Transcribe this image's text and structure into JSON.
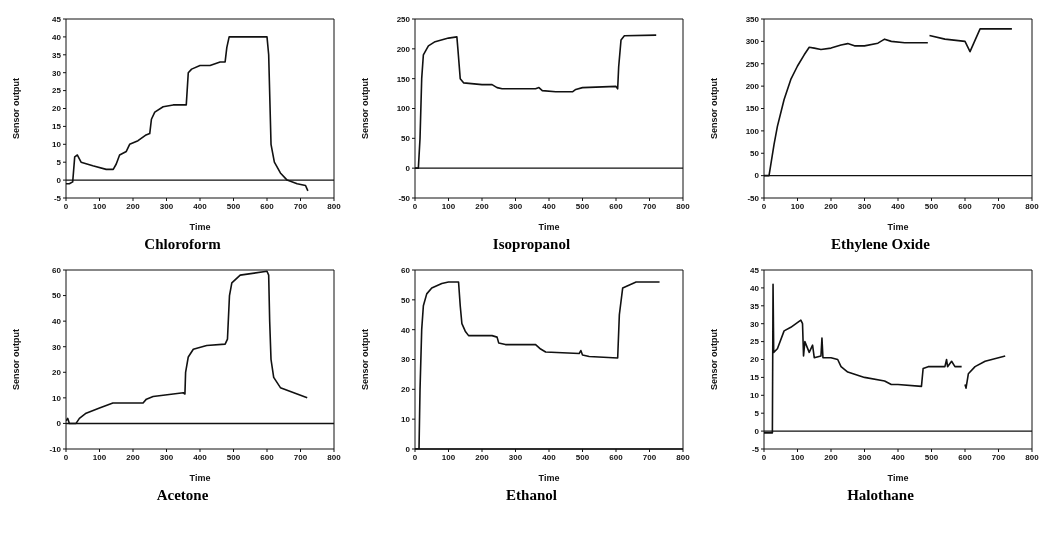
{
  "chart_data": [
    {
      "type": "line",
      "title": "Chloroform",
      "xlabel": "Time",
      "ylabel": "Sensor output",
      "xlim": [
        0,
        800
      ],
      "xticks": [
        0,
        100,
        200,
        300,
        400,
        500,
        600,
        700,
        800
      ],
      "ylim": [
        -5,
        45
      ],
      "yticks": [
        -5,
        0,
        5,
        10,
        15,
        20,
        25,
        30,
        35,
        40,
        45
      ],
      "marker": "none",
      "ref_lines": [
        {
          "axis": "y",
          "value": 0
        }
      ],
      "x": [
        0,
        10,
        20,
        26,
        34,
        45,
        80,
        120,
        141,
        150,
        160,
        180,
        190,
        215,
        237,
        250,
        255,
        265,
        290,
        320,
        359,
        365,
        375,
        400,
        430,
        460,
        475,
        480,
        487,
        500,
        600,
        605,
        612,
        622,
        640,
        660,
        690,
        715,
        722
      ],
      "series": [
        {
          "color": "#111111",
          "values": [
            -1,
            -1,
            -0.5,
            6.5,
            7,
            5,
            4,
            3,
            3,
            4.5,
            7,
            8,
            10,
            11,
            12.5,
            13,
            17,
            19,
            20.5,
            21,
            21,
            30,
            31,
            32,
            32,
            33,
            33,
            37,
            40,
            40,
            40,
            35,
            10,
            5,
            2,
            0,
            -1,
            -1.5,
            -3
          ]
        }
      ]
    },
    {
      "type": "line",
      "title": "Isopropanol",
      "xlabel": "Time",
      "ylabel": "Sensor output",
      "xlim": [
        0,
        800
      ],
      "xticks": [
        0,
        100,
        200,
        300,
        400,
        500,
        600,
        700,
        800
      ],
      "ylim": [
        -50,
        250
      ],
      "yticks": [
        -50,
        0,
        50,
        100,
        150,
        200,
        250
      ],
      "marker": "none",
      "ref_lines": [
        {
          "axis": "y",
          "value": 0
        }
      ],
      "x": [
        0,
        10,
        15,
        20,
        25,
        40,
        60,
        100,
        125,
        128,
        135,
        145,
        200,
        230,
        245,
        260,
        360,
        370,
        380,
        420,
        470,
        480,
        500,
        600,
        605,
        608,
        615,
        625,
        720
      ],
      "series": [
        {
          "color": "#111111",
          "values": [
            0,
            0,
            50,
            150,
            190,
            205,
            212,
            218,
            220,
            200,
            150,
            143,
            140,
            140,
            135,
            133,
            133,
            135,
            130,
            128,
            128,
            132,
            135,
            137,
            133,
            170,
            215,
            222,
            223
          ]
        }
      ]
    },
    {
      "type": "line",
      "title": "Ethylene Oxide",
      "xlabel": "Time",
      "ylabel": "Sensor output",
      "xlim": [
        0,
        800
      ],
      "xticks": [
        0,
        100,
        200,
        300,
        400,
        500,
        600,
        700,
        800
      ],
      "ylim": [
        -50,
        350
      ],
      "yticks": [
        -50,
        0,
        50,
        100,
        150,
        200,
        250,
        300,
        350
      ],
      "marker": "none",
      "ref_lines": [
        {
          "axis": "y",
          "value": 0
        }
      ],
      "x": [
        0,
        15,
        30,
        40,
        60,
        80,
        100,
        120,
        135,
        150,
        170,
        200,
        230,
        250,
        270,
        300,
        340,
        360,
        380,
        420,
        489,
        491,
        494,
        540,
        600,
        615,
        645,
        740
      ],
      "series": [
        {
          "color": "#111111",
          "values": [
            0,
            0,
            70,
            110,
            170,
            215,
            245,
            270,
            287,
            285,
            282,
            285,
            292,
            295,
            290,
            290,
            296,
            305,
            300,
            297,
            297,
            null,
            313,
            305,
            300,
            277,
            328,
            328
          ]
        }
      ]
    },
    {
      "type": "line",
      "title": "Acetone",
      "xlabel": "Time",
      "ylabel": "Sensor output",
      "xlim": [
        0,
        800
      ],
      "xticks": [
        0,
        100,
        200,
        300,
        400,
        500,
        600,
        700,
        800
      ],
      "ylim": [
        -10,
        60
      ],
      "yticks": [
        -10,
        0,
        10,
        20,
        30,
        40,
        50,
        60
      ],
      "marker": "none",
      "ref_lines": [
        {
          "axis": "y",
          "value": 0
        }
      ],
      "x": [
        0,
        5,
        10,
        30,
        40,
        60,
        100,
        120,
        140,
        200,
        230,
        240,
        260,
        320,
        350,
        355,
        357,
        365,
        380,
        420,
        475,
        482,
        488,
        495,
        520,
        600,
        605,
        608,
        612,
        620,
        640,
        680,
        720
      ],
      "series": [
        {
          "color": "#111111",
          "values": [
            1,
            2,
            0,
            0,
            2,
            4,
            6,
            7,
            8,
            8,
            8,
            9.5,
            10.5,
            11.5,
            12,
            11.5,
            20,
            26,
            29,
            30.5,
            31,
            33,
            50,
            55,
            58,
            59.5,
            58,
            40,
            25,
            18,
            14,
            12,
            10
          ]
        }
      ]
    },
    {
      "type": "line",
      "title": "Ethanol",
      "xlabel": "Time",
      "ylabel": "Sensor output",
      "xlim": [
        0,
        800
      ],
      "xticks": [
        0,
        100,
        200,
        300,
        400,
        500,
        600,
        700,
        800
      ],
      "ylim": [
        0,
        60
      ],
      "yticks": [
        0,
        10,
        20,
        30,
        40,
        50,
        60
      ],
      "marker": "none",
      "ref_lines": [
        {
          "axis": "y",
          "value": 0
        }
      ],
      "x": [
        0,
        12,
        15,
        20,
        25,
        35,
        50,
        80,
        100,
        130,
        135,
        140,
        150,
        160,
        230,
        245,
        250,
        270,
        360,
        375,
        390,
        490,
        495,
        500,
        520,
        605,
        610,
        620,
        640,
        660,
        730
      ],
      "series": [
        {
          "color": "#111111",
          "values": [
            0,
            0,
            20,
            40,
            48,
            52,
            54,
            55.5,
            56,
            56,
            48,
            42,
            39.5,
            38,
            38,
            37.5,
            35.5,
            35,
            35,
            33.5,
            32.5,
            32,
            33,
            31.5,
            31,
            30.5,
            45,
            54,
            55,
            56,
            56
          ]
        }
      ]
    },
    {
      "type": "line",
      "title": "Halothane",
      "xlabel": "Time",
      "ylabel": "Sensor output",
      "xlim": [
        0,
        800
      ],
      "xticks": [
        0,
        100,
        200,
        300,
        400,
        500,
        600,
        700,
        800
      ],
      "ylim": [
        -5,
        45
      ],
      "yticks": [
        -5,
        0,
        5,
        10,
        15,
        20,
        25,
        30,
        35,
        40,
        45
      ],
      "marker": "none",
      "ref_lines": [
        {
          "axis": "y",
          "value": 0
        }
      ],
      "x": [
        0,
        25,
        27,
        29,
        40,
        60,
        80,
        110,
        115,
        118,
        122,
        135,
        145,
        150,
        170,
        173,
        176,
        200,
        220,
        230,
        250,
        300,
        360,
        380,
        400,
        470,
        475,
        490,
        540,
        545,
        548,
        560,
        570,
        590,
        595,
        600,
        603,
        610,
        630,
        660,
        700,
        720
      ],
      "series": [
        {
          "color": "#111111",
          "values": [
            -0.5,
            -0.5,
            41,
            22,
            23,
            28,
            29,
            31,
            30,
            21,
            25,
            22,
            24,
            20.5,
            21,
            26,
            20.5,
            20.5,
            20,
            18,
            16.5,
            15,
            14,
            13,
            13,
            12.5,
            17.5,
            18,
            18,
            20,
            18,
            19.5,
            18,
            18,
            null,
            13,
            12,
            16,
            18,
            19.5,
            20.5,
            21
          ]
        }
      ]
    }
  ]
}
